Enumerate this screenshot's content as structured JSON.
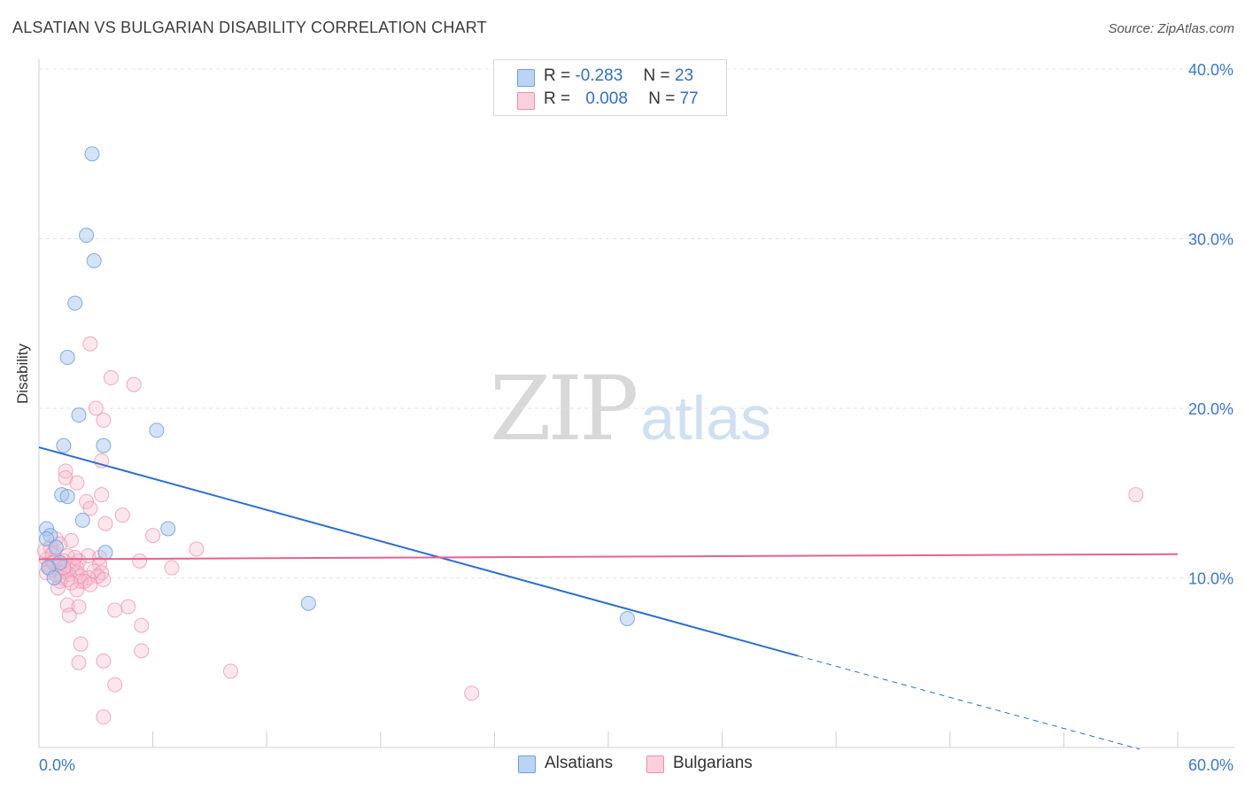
{
  "header": {
    "title": "ALSATIAN VS BULGARIAN DISABILITY CORRELATION CHART",
    "source": "Source: ZipAtlas.com"
  },
  "watermark": {
    "zip": "ZIP",
    "atlas": "atlas"
  },
  "legend": {
    "rows": [
      {
        "r_label": "R =",
        "r_value": "-0.283",
        "n_label": "N =",
        "n_value": "23"
      },
      {
        "r_label": "R =",
        "r_value": "0.008",
        "n_label": "N =",
        "n_value": "77"
      }
    ]
  },
  "bottom_legend": {
    "alsatians": "Alsatians",
    "bulgarians": "Bulgarians"
  },
  "colors": {
    "alsatian_fill": "#a9c8f0",
    "alsatian_stroke": "#6f9fdc",
    "alsatian_line": "#2b6fd1",
    "bulgarian_fill": "#f7b9cc",
    "bulgarian_stroke": "#ee8fae",
    "bulgarian_line": "#e4638f",
    "tick_label": "#3a78d0"
  },
  "chart_data": {
    "type": "scatter",
    "title": "ALSATIAN VS BULGARIAN DISABILITY CORRELATION CHART",
    "xlabel": "",
    "ylabel": "Disability",
    "xlim": [
      0,
      60
    ],
    "ylim": [
      0,
      40
    ],
    "x_tick_labels": [
      {
        "value": 0,
        "label": "0.0%"
      },
      {
        "value": 60,
        "label": "60.0%"
      }
    ],
    "x_minor_ticks": [
      0,
      6,
      12,
      18,
      24,
      30,
      36,
      42,
      48,
      54,
      60
    ],
    "y_tick_labels": [
      {
        "value": 10,
        "label": "10.0%"
      },
      {
        "value": 20,
        "label": "20.0%"
      },
      {
        "value": 30,
        "label": "30.0%"
      },
      {
        "value": 40,
        "label": "40.0%"
      }
    ],
    "grid": true,
    "series": [
      {
        "name": "Alsatians",
        "r": -0.283,
        "n": 23,
        "points": [
          [
            2.8,
            35.0
          ],
          [
            2.5,
            30.2
          ],
          [
            2.9,
            28.7
          ],
          [
            1.9,
            26.2
          ],
          [
            1.5,
            23.0
          ],
          [
            2.1,
            19.6
          ],
          [
            6.2,
            18.7
          ],
          [
            1.3,
            17.8
          ],
          [
            3.4,
            17.8
          ],
          [
            1.2,
            14.9
          ],
          [
            1.5,
            14.8
          ],
          [
            2.3,
            13.4
          ],
          [
            6.8,
            12.9
          ],
          [
            0.4,
            12.9
          ],
          [
            0.6,
            12.5
          ],
          [
            0.4,
            12.3
          ],
          [
            0.9,
            11.8
          ],
          [
            3.5,
            11.5
          ],
          [
            1.1,
            10.9
          ],
          [
            0.5,
            10.6
          ],
          [
            0.8,
            10.0
          ],
          [
            14.2,
            8.5
          ],
          [
            31.0,
            7.6
          ]
        ],
        "trend": {
          "x0": 0,
          "y0": 17.7,
          "x1": 40,
          "y1": 5.4,
          "dashed_to_x": 58,
          "dashed_to_y": -0.1
        }
      },
      {
        "name": "Bulgarians",
        "r": 0.008,
        "n": 77,
        "points": [
          [
            2.7,
            23.8
          ],
          [
            3.8,
            21.8
          ],
          [
            5.0,
            21.4
          ],
          [
            3.0,
            20.0
          ],
          [
            3.4,
            19.3
          ],
          [
            3.3,
            16.9
          ],
          [
            1.4,
            16.3
          ],
          [
            1.4,
            15.9
          ],
          [
            2.0,
            15.6
          ],
          [
            3.3,
            14.9
          ],
          [
            2.5,
            14.5
          ],
          [
            2.7,
            14.1
          ],
          [
            4.4,
            13.7
          ],
          [
            3.5,
            13.2
          ],
          [
            6.0,
            12.5
          ],
          [
            0.9,
            12.3
          ],
          [
            1.7,
            12.2
          ],
          [
            1.1,
            12.0
          ],
          [
            0.6,
            11.8
          ],
          [
            8.3,
            11.7
          ],
          [
            0.8,
            11.5
          ],
          [
            1.5,
            11.3
          ],
          [
            2.6,
            11.3
          ],
          [
            3.2,
            11.2
          ],
          [
            0.4,
            11.1
          ],
          [
            1.3,
            11.0
          ],
          [
            2.1,
            11.0
          ],
          [
            5.3,
            11.0
          ],
          [
            0.7,
            10.9
          ],
          [
            1.0,
            10.8
          ],
          [
            1.8,
            10.8
          ],
          [
            3.2,
            10.8
          ],
          [
            0.5,
            10.7
          ],
          [
            2.0,
            10.6
          ],
          [
            7.0,
            10.6
          ],
          [
            0.6,
            10.5
          ],
          [
            1.4,
            10.4
          ],
          [
            2.9,
            10.4
          ],
          [
            0.4,
            10.3
          ],
          [
            1.1,
            10.3
          ],
          [
            2.0,
            10.3
          ],
          [
            3.3,
            10.3
          ],
          [
            0.9,
            10.2
          ],
          [
            1.6,
            10.2
          ],
          [
            2.2,
            10.1
          ],
          [
            3.1,
            10.1
          ],
          [
            1.2,
            10.0
          ],
          [
            2.6,
            10.0
          ],
          [
            1.5,
            9.9
          ],
          [
            3.4,
            9.9
          ],
          [
            1.1,
            9.8
          ],
          [
            2.2,
            9.8
          ],
          [
            2.4,
            9.8
          ],
          [
            1.7,
            9.7
          ],
          [
            2.7,
            9.6
          ],
          [
            1.0,
            9.4
          ],
          [
            2.0,
            9.3
          ],
          [
            1.5,
            8.4
          ],
          [
            2.1,
            8.3
          ],
          [
            4.7,
            8.3
          ],
          [
            4.0,
            8.1
          ],
          [
            1.6,
            7.8
          ],
          [
            5.4,
            7.2
          ],
          [
            2.2,
            6.1
          ],
          [
            5.4,
            5.7
          ],
          [
            2.1,
            5.0
          ],
          [
            3.4,
            5.1
          ],
          [
            10.1,
            4.5
          ],
          [
            4.0,
            3.7
          ],
          [
            22.8,
            3.2
          ],
          [
            3.4,
            1.8
          ],
          [
            57.8,
            14.9
          ],
          [
            0.3,
            11.6
          ],
          [
            0.7,
            11.4
          ],
          [
            1.9,
            11.2
          ],
          [
            0.8,
            10.9
          ],
          [
            1.3,
            10.6
          ]
        ],
        "trend": {
          "x0": 0,
          "y0": 11.1,
          "x1": 60,
          "y1": 11.4
        }
      }
    ]
  }
}
